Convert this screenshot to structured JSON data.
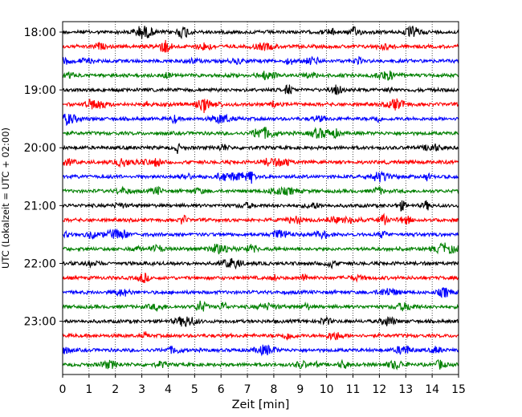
{
  "chart_data": {
    "type": "line",
    "title": "",
    "xlabel": "Zeit  [min]",
    "ylabel": "UTC (Lokalzeit = UTC + 02:00)",
    "xlim": [
      0,
      15
    ],
    "x_ticks": [
      "0",
      "1",
      "2",
      "3",
      "4",
      "5",
      "6",
      "7",
      "8",
      "9",
      "10",
      "11",
      "12",
      "13",
      "14",
      "15"
    ],
    "y_ticks": [
      "18:00",
      "19:00",
      "20:00",
      "21:00",
      "22:00",
      "23:00"
    ],
    "row_interval_min": 15,
    "start_time": "18:00",
    "grid": "vertical dotted",
    "series_colors": [
      "#000000",
      "#ff0000",
      "#0000ff",
      "#008000"
    ],
    "rows": [
      {
        "time": "18:00",
        "color": "#000000"
      },
      {
        "time": "18:15",
        "color": "#ff0000"
      },
      {
        "time": "18:30",
        "color": "#0000ff"
      },
      {
        "time": "18:45",
        "color": "#008000"
      },
      {
        "time": "19:00",
        "color": "#000000"
      },
      {
        "time": "19:15",
        "color": "#ff0000"
      },
      {
        "time": "19:30",
        "color": "#0000ff"
      },
      {
        "time": "19:45",
        "color": "#008000"
      },
      {
        "time": "20:00",
        "color": "#000000"
      },
      {
        "time": "20:15",
        "color": "#ff0000"
      },
      {
        "time": "20:30",
        "color": "#0000ff"
      },
      {
        "time": "20:45",
        "color": "#008000"
      },
      {
        "time": "21:00",
        "color": "#000000"
      },
      {
        "time": "21:15",
        "color": "#ff0000"
      },
      {
        "time": "21:30",
        "color": "#0000ff"
      },
      {
        "time": "21:45",
        "color": "#008000"
      },
      {
        "time": "22:00",
        "color": "#000000"
      },
      {
        "time": "22:15",
        "color": "#ff0000"
      },
      {
        "time": "22:30",
        "color": "#0000ff"
      },
      {
        "time": "22:45",
        "color": "#008000"
      },
      {
        "time": "23:00",
        "color": "#000000"
      },
      {
        "time": "23:15",
        "color": "#ff0000"
      },
      {
        "time": "23:30",
        "color": "#0000ff"
      },
      {
        "time": "23:45",
        "color": "#008000"
      }
    ]
  }
}
